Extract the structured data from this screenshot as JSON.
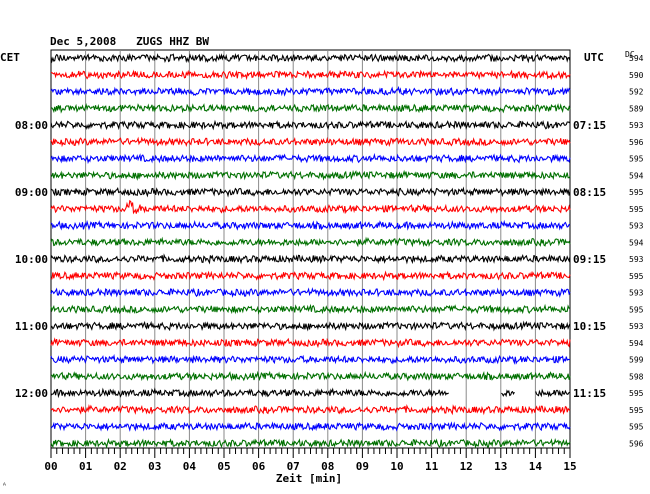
{
  "chart_data": {
    "type": "line",
    "title": "Dec 5,2008   ZUGS HHZ BW",
    "xlabel": "Zeit [min]",
    "left_axis_label": "CET",
    "right_axis_label": "UTC",
    "dc_label": "DC",
    "x_ticks": [
      "00",
      "01",
      "02",
      "03",
      "04",
      "05",
      "06",
      "07",
      "08",
      "09",
      "10",
      "11",
      "12",
      "13",
      "14",
      "15"
    ],
    "xlim": [
      0,
      15
    ],
    "grid": true,
    "trace_colors": [
      "#000000",
      "#ff0000",
      "#0000ff",
      "#007000"
    ],
    "left_time_labels": [
      {
        "trace": 4,
        "text": "08:00"
      },
      {
        "trace": 8,
        "text": "09:00"
      },
      {
        "trace": 12,
        "text": "10:00"
      },
      {
        "trace": 16,
        "text": "11:00"
      },
      {
        "trace": 20,
        "text": "12:00"
      }
    ],
    "right_time_labels": [
      {
        "trace": 4,
        "text": "07:15"
      },
      {
        "trace": 8,
        "text": "08:15"
      },
      {
        "trace": 12,
        "text": "09:15"
      },
      {
        "trace": 16,
        "text": "10:15"
      },
      {
        "trace": 20,
        "text": "11:15"
      }
    ],
    "dc_values": [
      594,
      590,
      592,
      589,
      593,
      596,
      595,
      594,
      595,
      595,
      593,
      594,
      593,
      595,
      593,
      595,
      593,
      594,
      599,
      598,
      595,
      595,
      595,
      596
    ],
    "events": [
      {
        "trace": 9,
        "minute": 2.2,
        "description": "seismic event"
      }
    ],
    "gaps": [
      {
        "trace": 20,
        "from_minute": 11.5,
        "to_minute": 13.0
      },
      {
        "trace": 20,
        "from_minute": 13.4,
        "to_minute": 14.0
      }
    ]
  },
  "corner_mark": "ᴬ"
}
